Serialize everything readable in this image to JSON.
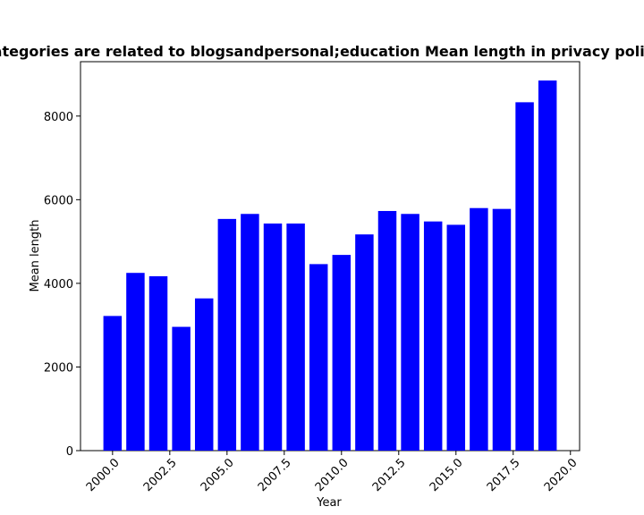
{
  "chart_data": {
    "type": "bar",
    "title": "Categories are related to blogsandpersonal;education Mean length in privacy policies",
    "xlabel": "Year",
    "ylabel": "Mean length",
    "x": [
      2000,
      2001,
      2002,
      2003,
      2004,
      2005,
      2006,
      2007,
      2008,
      2009,
      2010,
      2011,
      2012,
      2013,
      2014,
      2015,
      2016,
      2017,
      2018,
      2019
    ],
    "values": [
      3220,
      4250,
      4170,
      2960,
      3640,
      5540,
      5660,
      5430,
      5430,
      4460,
      4680,
      5170,
      5730,
      5660,
      5480,
      5400,
      5800,
      5780,
      8330,
      8850
    ],
    "xlim": [
      1998.6,
      2020.4
    ],
    "ylim": [
      0,
      9300
    ],
    "xticks": [
      2000.0,
      2002.5,
      2005.0,
      2007.5,
      2010.0,
      2012.5,
      2015.0,
      2017.5,
      2020.0
    ],
    "xtick_labels": [
      "2000.0",
      "2002.5",
      "2005.0",
      "2007.5",
      "2010.0",
      "2012.5",
      "2015.0",
      "2017.5",
      "2020.0"
    ],
    "yticks": [
      0,
      2000,
      4000,
      6000,
      8000
    ],
    "ytick_labels": [
      "0",
      "2000",
      "4000",
      "6000",
      "8000"
    ],
    "bar_color": "#0000ff",
    "grid": false,
    "legend": "none"
  }
}
